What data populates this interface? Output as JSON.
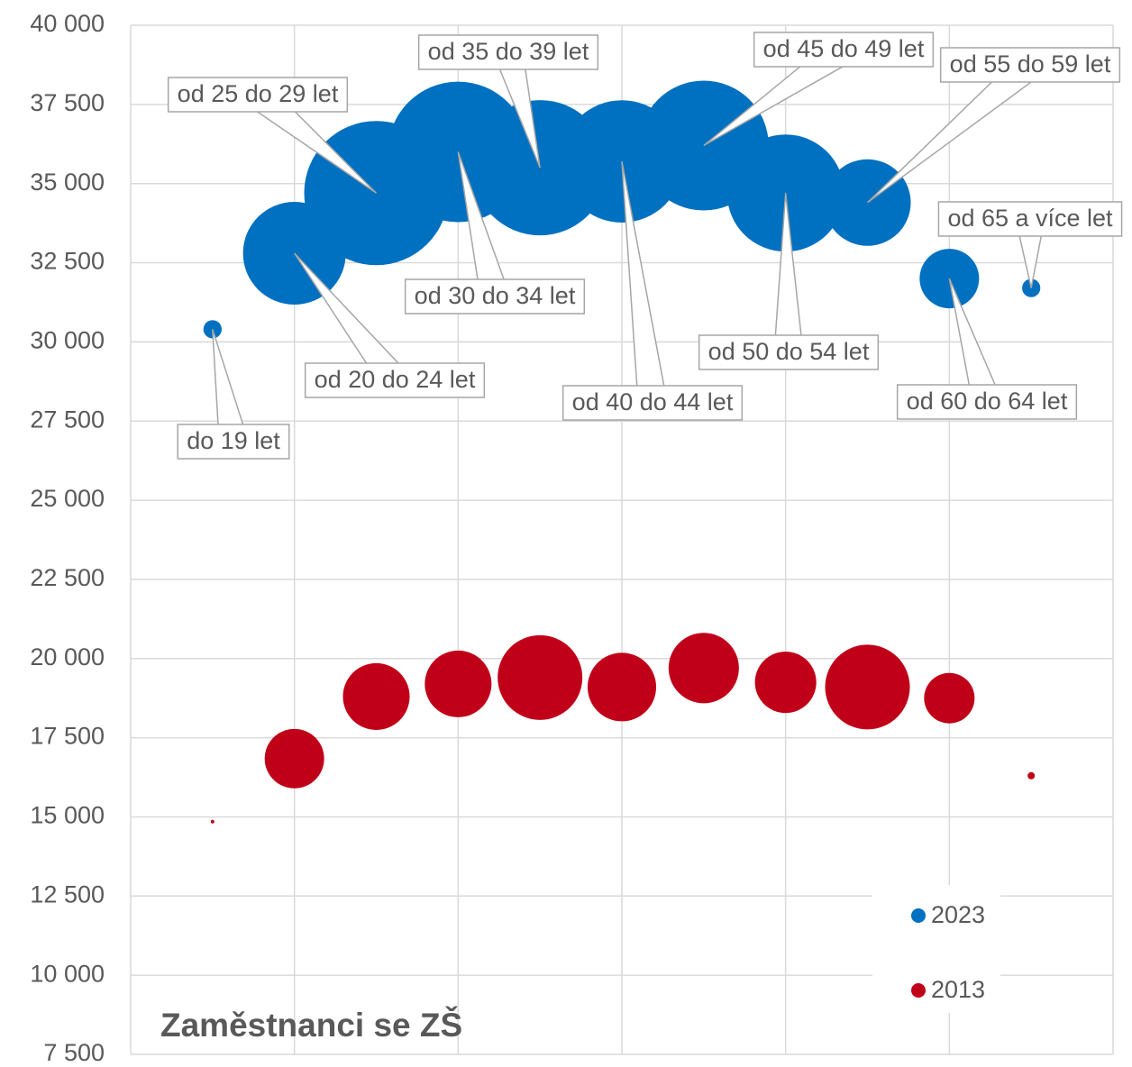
{
  "chart_data": {
    "type": "bubble",
    "title": "Zaměstnanci se ZŠ",
    "categories": [
      "do 19 let",
      "od 20 do 24 let",
      "od 25 do 29 let",
      "od 30 do 34 let",
      "od 35 do 39 let",
      "od 40 do 44 let",
      "od 45 do 49 let",
      "od 50 do 54 let",
      "od 55 do 59 let",
      "od 60 do 64 let",
      "od 65 a více let"
    ],
    "x": [
      1,
      2,
      3,
      4,
      5,
      6,
      7,
      8,
      9,
      10,
      11
    ],
    "series": [
      {
        "name": "2023",
        "color": "#0070c0",
        "values": [
          30400,
          32800,
          34700,
          36000,
          35500,
          35700,
          36200,
          34700,
          34400,
          32000,
          31700
        ],
        "sizes": [
          160,
          5080,
          10000,
          9500,
          8800,
          7200,
          8100,
          6600,
          3600,
          1700,
          160
        ]
      },
      {
        "name": "2013",
        "color": "#c00018",
        "values": [
          14850,
          16840,
          18800,
          19200,
          19400,
          19100,
          19700,
          19250,
          19100,
          18750,
          16300
        ],
        "sizes": [
          6,
          1700,
          2140,
          2140,
          3450,
          2260,
          2380,
          1810,
          3450,
          1225,
          25
        ]
      }
    ],
    "xlim": [
      0,
      12
    ],
    "xticks": [
      0,
      2,
      4,
      6,
      8,
      10,
      12
    ],
    "ylim": [
      7500,
      40000
    ],
    "yticks": [
      {
        "value": 7500,
        "label": "7 500"
      },
      {
        "value": 10000,
        "label": "10 000"
      },
      {
        "value": 12500,
        "label": "12 500"
      },
      {
        "value": 15000,
        "label": "15 000"
      },
      {
        "value": 17500,
        "label": "17 500"
      },
      {
        "value": 20000,
        "label": "20 000"
      },
      {
        "value": 22500,
        "label": "22 500"
      },
      {
        "value": 25000,
        "label": "25 000"
      },
      {
        "value": 27500,
        "label": "27 500"
      },
      {
        "value": 30000,
        "label": "30 000"
      },
      {
        "value": 32500,
        "label": "32 500"
      },
      {
        "value": 35000,
        "label": "35 000"
      },
      {
        "value": 37500,
        "label": "37 500"
      },
      {
        "value": 40000,
        "label": "40 000"
      }
    ],
    "grid": true,
    "legend": "lower right"
  }
}
